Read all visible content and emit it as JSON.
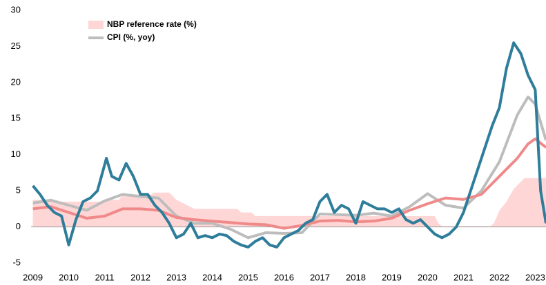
{
  "chart_data": {
    "type": "line",
    "xlim": [
      2008.95,
      2023.3
    ],
    "xticks": [
      2009,
      2010,
      2011,
      2012,
      2013,
      2014,
      2015,
      2016,
      2017,
      2018,
      2019,
      2020,
      2021,
      2022,
      2023
    ],
    "ylim": [
      -5,
      30
    ],
    "yticks": [
      -5,
      0,
      5,
      10,
      15,
      20,
      25,
      30
    ],
    "grid": false,
    "legend": "top-left",
    "series": [
      {
        "name": "NBP reference rate (%)",
        "color": "#ffd6d6",
        "fill": "area",
        "x": [
          2009.0,
          2009.4,
          2009.5,
          2010.9,
          2011.0,
          2011.4,
          2011.5,
          2012.3,
          2012.4,
          2012.8,
          2013.0,
          2013.3,
          2013.5,
          2014.7,
          2014.8,
          2015.1,
          2015.2,
          2020.2,
          2020.3,
          2020.4,
          2021.75,
          2021.85,
          2022.0,
          2022.2,
          2022.4,
          2022.7,
          2023.3
        ],
        "values": [
          3.75,
          3.75,
          3.5,
          3.5,
          3.75,
          3.75,
          4.5,
          4.5,
          4.75,
          4.75,
          3.75,
          3.0,
          2.5,
          2.5,
          2.0,
          2.0,
          1.5,
          1.5,
          0.5,
          0.1,
          0.1,
          0.5,
          2.25,
          3.5,
          5.25,
          6.75,
          6.75
        ]
      },
      {
        "name": "CPI (%, yoy)",
        "color": "#bdbdbd",
        "x": [
          2009.0,
          2009.5,
          2010.0,
          2010.5,
          2011.0,
          2011.5,
          2012.0,
          2012.5,
          2013.0,
          2013.5,
          2014.0,
          2014.5,
          2015.0,
          2015.5,
          2016.0,
          2016.5,
          2017.0,
          2017.5,
          2018.0,
          2018.5,
          2019.0,
          2019.5,
          2020.0,
          2020.5,
          2021.0,
          2021.5,
          2022.0,
          2022.5,
          2022.8,
          2023.0,
          2023.3
        ],
        "values": [
          3.3,
          3.7,
          3.0,
          2.3,
          3.6,
          4.5,
          4.2,
          4.0,
          1.5,
          0.5,
          0.5,
          -0.3,
          -1.5,
          -0.8,
          -0.9,
          -0.8,
          1.8,
          1.7,
          1.6,
          1.9,
          1.5,
          2.8,
          4.6,
          3.0,
          2.6,
          5.0,
          9.0,
          15.5,
          18.0,
          17.0,
          12.0
        ]
      },
      {
        "color": "#f08a8a",
        "x": [
          2009.0,
          2009.5,
          2010.0,
          2010.5,
          2011.0,
          2011.5,
          2012.0,
          2012.5,
          2013.0,
          2013.5,
          2014.0,
          2014.5,
          2015.0,
          2015.5,
          2016.0,
          2016.5,
          2017.0,
          2017.5,
          2018.0,
          2018.5,
          2019.0,
          2019.5,
          2020.0,
          2020.5,
          2021.0,
          2021.5,
          2022.0,
          2022.5,
          2022.8,
          2023.0,
          2023.3
        ],
        "values": [
          2.5,
          2.8,
          2.0,
          1.2,
          1.5,
          2.5,
          2.5,
          2.3,
          1.3,
          1.0,
          0.8,
          0.6,
          0.4,
          0.3,
          -0.2,
          0.2,
          0.8,
          0.9,
          0.7,
          0.8,
          1.2,
          2.3,
          3.2,
          4.0,
          3.8,
          4.5,
          7.0,
          9.5,
          11.5,
          12.2,
          11.0
        ]
      },
      {
        "color": "#2e7d9a",
        "x": [
          2009.0,
          2009.2,
          2009.4,
          2009.6,
          2009.8,
          2010.0,
          2010.2,
          2010.4,
          2010.6,
          2010.8,
          2011.05,
          2011.2,
          2011.4,
          2011.6,
          2011.8,
          2012.0,
          2012.2,
          2012.4,
          2012.6,
          2012.8,
          2013.0,
          2013.2,
          2013.4,
          2013.6,
          2013.8,
          2014.0,
          2014.2,
          2014.4,
          2014.6,
          2014.8,
          2015.0,
          2015.2,
          2015.4,
          2015.6,
          2015.8,
          2016.0,
          2016.2,
          2016.4,
          2016.6,
          2016.8,
          2017.0,
          2017.2,
          2017.4,
          2017.6,
          2017.8,
          2018.0,
          2018.2,
          2018.4,
          2018.6,
          2018.8,
          2019.0,
          2019.2,
          2019.4,
          2019.6,
          2019.8,
          2020.0,
          2020.2,
          2020.4,
          2020.6,
          2020.8,
          2021.0,
          2021.2,
          2021.4,
          2021.6,
          2021.8,
          2022.0,
          2022.2,
          2022.4,
          2022.6,
          2022.8,
          2023.0,
          2023.15,
          2023.3
        ],
        "values": [
          5.7,
          4.5,
          3.0,
          2.0,
          1.5,
          -2.5,
          1.0,
          3.5,
          4.0,
          5.0,
          9.5,
          7.0,
          6.5,
          8.8,
          7.0,
          4.5,
          4.5,
          3.0,
          2.0,
          0.5,
          -1.5,
          -1.0,
          0.5,
          -1.5,
          -1.2,
          -1.5,
          -1.0,
          -1.2,
          -2.0,
          -2.5,
          -2.8,
          -2.0,
          -1.5,
          -2.5,
          -2.8,
          -1.5,
          -1.0,
          -0.5,
          0.5,
          1.0,
          3.5,
          4.5,
          2.0,
          3.0,
          2.5,
          0.5,
          3.5,
          3.0,
          2.5,
          2.5,
          2.0,
          2.5,
          1.0,
          0.5,
          1.0,
          0.0,
          -1.0,
          -1.5,
          -1.0,
          0.0,
          2.0,
          5.0,
          8.0,
          11.0,
          14.0,
          16.5,
          22.0,
          25.5,
          24.0,
          21.0,
          19.0,
          5.0,
          0.5
        ]
      }
    ]
  }
}
